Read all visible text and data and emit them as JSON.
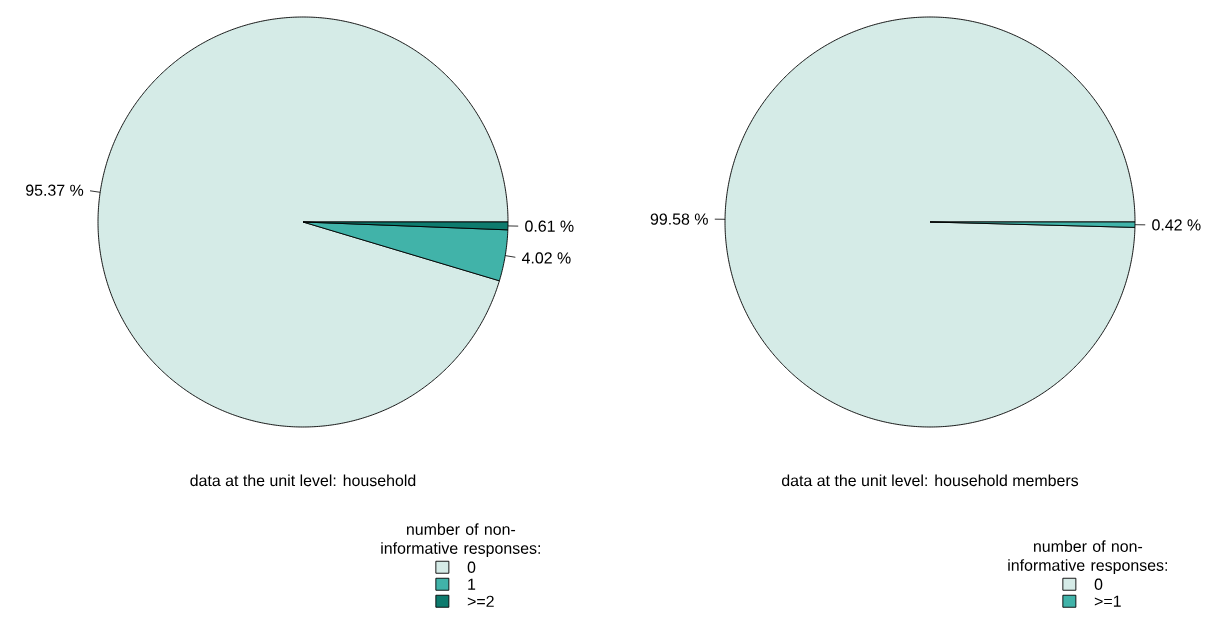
{
  "chart_data": [
    {
      "type": "pie",
      "xlabel": "data at the unit level: household",
      "categories": [
        "0",
        "1",
        ">=2"
      ],
      "values": [
        95.37,
        4.02,
        0.61
      ],
      "value_labels": [
        "95.37 %",
        "4.02 %",
        "0.61 %"
      ],
      "colors": [
        "#d5ebe7",
        "#41b3a9",
        "#0e7b6e"
      ],
      "legend": "bottom",
      "legend_title": "number of non-informative responses:"
    },
    {
      "type": "pie",
      "xlabel": "data at the unit level: household members",
      "categories": [
        "0",
        ">=1"
      ],
      "values": [
        99.58,
        0.42
      ],
      "value_labels": [
        "99.58 %",
        "0.42 %"
      ],
      "colors": [
        "#d5ebe7",
        "#41b3a9"
      ],
      "legend": "bottom",
      "legend_title": "number of non-informative responses:"
    }
  ]
}
